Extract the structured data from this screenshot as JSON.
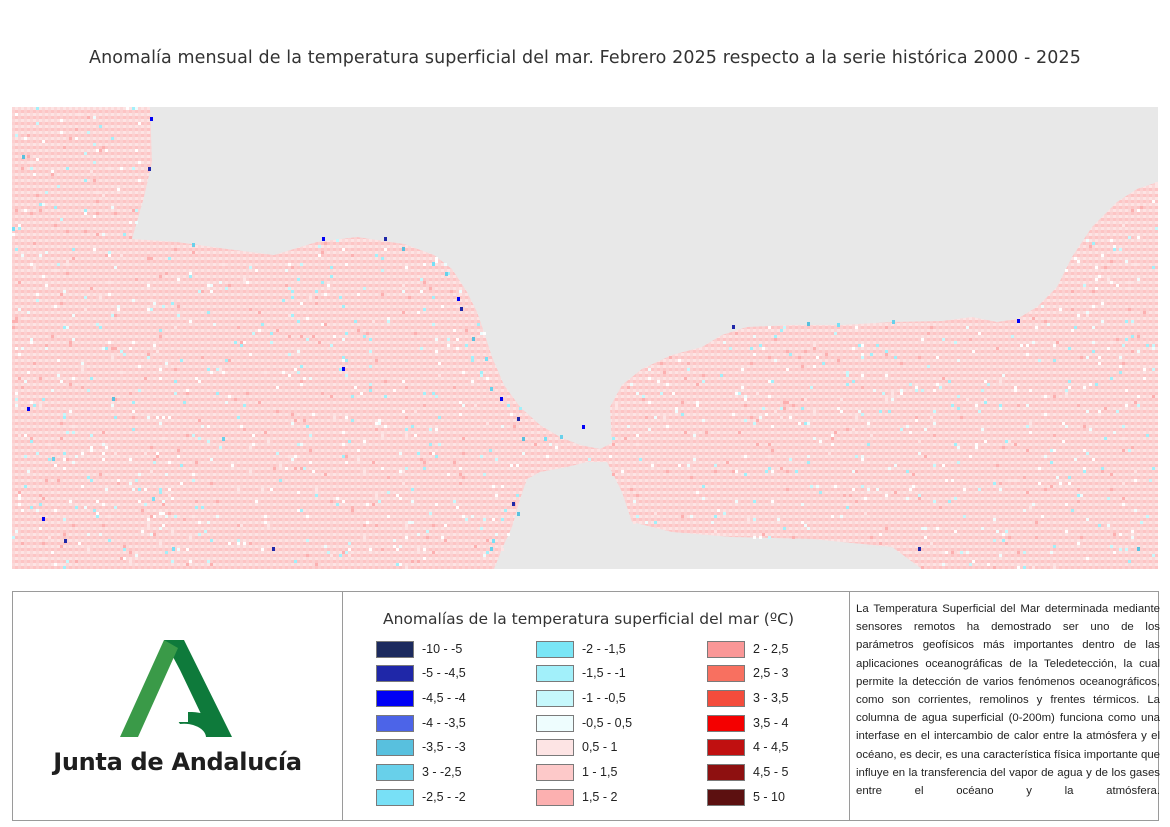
{
  "title": "Anomalía mensual de la temperatura superficial del mar. Febrero 2025 respecto a la serie histórica 2000 - 2025",
  "colors": {
    "land": "#e8e8e8",
    "sea_dominant": "#fdd0d0",
    "logo_dark_green": "#0e7a3b",
    "logo_light_green": "#3a9a48"
  },
  "map": {
    "region": "Golfo de Cádiz, Estrecho de Gibraltar y Mar de Alborán",
    "dominant_class": "0,5 - 1"
  },
  "logo": {
    "name": "Junta de Andalucía"
  },
  "legend": {
    "title": "Anomalías de la temperatura superficial del mar (ºC)",
    "columns": [
      [
        {
          "label": "-10 - -5",
          "color": "#1c2a5e"
        },
        {
          "label": "-5 - -4,5",
          "color": "#1f27a8"
        },
        {
          "label": "-4,5 - -4",
          "color": "#0000f5"
        },
        {
          "label": "-4 - -3,5",
          "color": "#4c64e8"
        },
        {
          "label": "-3,5 - -3",
          "color": "#58c0de"
        },
        {
          "label": "3 - -2,5",
          "color": "#68d0ea"
        },
        {
          "label": "-2,5 - -2",
          "color": "#78e0f6"
        }
      ],
      [
        {
          "label": "-2 - -1,5",
          "color": "#7ae6f6"
        },
        {
          "label": "-1,5 - -1",
          "color": "#a2f0fa"
        },
        {
          "label": "-1 - -0,5",
          "color": "#c6f8fc"
        },
        {
          "label": "-0,5 - 0,5",
          "color": "#eefdfe"
        },
        {
          "label": "0,5 - 1",
          "color": "#fde4e4"
        },
        {
          "label": "1 - 1,5",
          "color": "#fdc9c9"
        },
        {
          "label": "1,5 - 2",
          "color": "#fcb0b0"
        }
      ],
      [
        {
          "label": "2 - 2,5",
          "color": "#fa9797"
        },
        {
          "label": "2,5 - 3",
          "color": "#f87060"
        },
        {
          "label": "3 - 3,5",
          "color": "#f44c3c"
        },
        {
          "label": "3,5 - 4",
          "color": "#f40000"
        },
        {
          "label": "4 - 4,5",
          "color": "#c01010"
        },
        {
          "label": "4,5 - 5",
          "color": "#8e1010"
        },
        {
          "label": "5 - 10",
          "color": "#5c1010"
        }
      ]
    ]
  },
  "description": "La Temperatura Superficial del Mar determinada mediante sensores remotos ha demostrado ser uno de los parámetros geofísicos más importantes dentro de las aplicaciones oceanográficas de la Teledetección, la cual permite la detección de varios fenómenos oceanográficos, como son corrientes, remolinos y frentes térmicos. La columna de agua superficial (0-200m) funciona como una interfase en el intercambio de calor entre la atmósfera y el océano, es decir, es una característica física importante que influye en la transferencia del vapor de agua y de los gases entre el océano y la atmósfera."
}
